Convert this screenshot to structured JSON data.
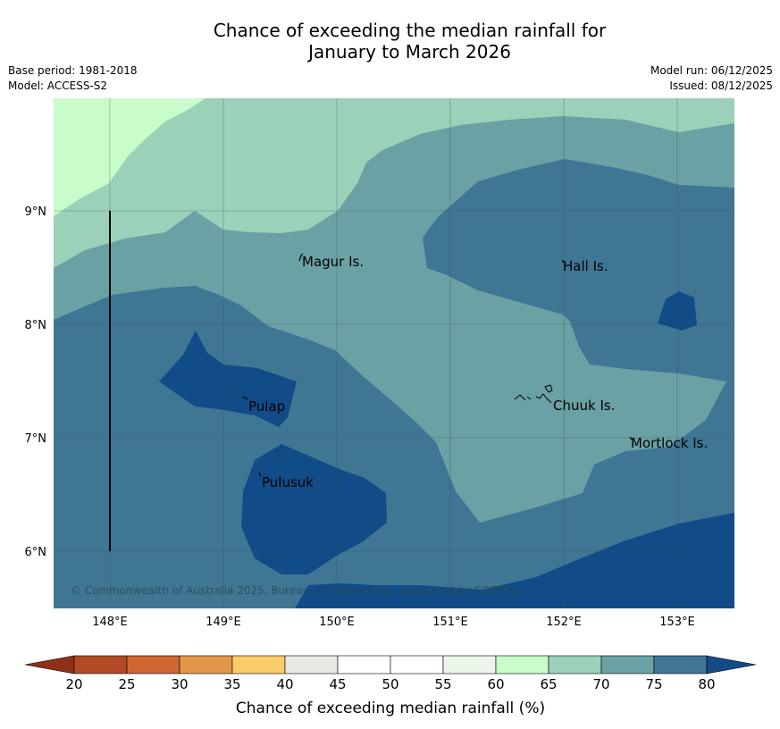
{
  "title": {
    "line1": "Chance of exceeding the median rainfall for",
    "line2": "January to March 2026"
  },
  "meta": {
    "base_period": "Base period: 1981-2018",
    "model": "Model: ACCESS-S2",
    "model_run": "Model run: 06/12/2025",
    "issued": "Issued: 08/12/2025"
  },
  "map": {
    "longitude_ticks": [
      "148°E",
      "149°E",
      "150°E",
      "151°E",
      "152°E",
      "153°E"
    ],
    "latitude_ticks": [
      "9°N",
      "8°N",
      "7°N",
      "6°N"
    ],
    "places": [
      {
        "name": "Magur Is."
      },
      {
        "name": "Hall Is."
      },
      {
        "name": "Pulap"
      },
      {
        "name": "Chuuk Is."
      },
      {
        "name": "Mortlock Is."
      },
      {
        "name": "Pulusuk"
      }
    ],
    "copyright": "© Commonwealth of Australia 2025, Bureau of Meteorology, supported by COSPPac"
  },
  "legend": {
    "ticks": [
      "20",
      "25",
      "30",
      "35",
      "40",
      "45",
      "50",
      "55",
      "60",
      "65",
      "70",
      "75",
      "80"
    ],
    "label": "Chance of exceeding median rainfall (%)",
    "colors": [
      "#b24a25",
      "#cf6633",
      "#e19649",
      "#fdcc6a",
      "#eae8e4",
      "#ffffff",
      "#ffffff",
      "#ebf5e9",
      "#c8fcca",
      "#9bd1b9",
      "#6aa1a5",
      "#3f7694"
    ],
    "under_color": "#8f3018",
    "over_color": "#114c88"
  }
}
